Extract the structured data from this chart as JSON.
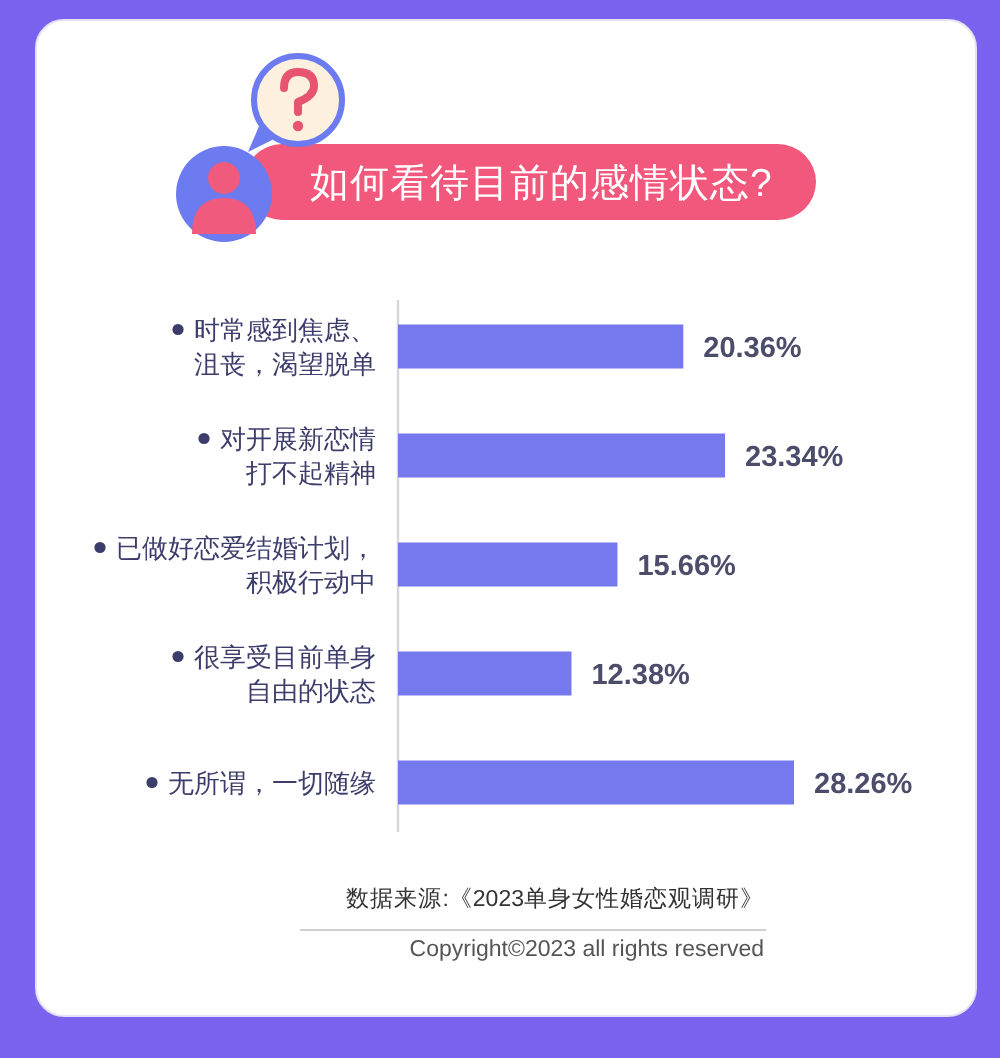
{
  "chart_data": {
    "type": "bar",
    "orientation": "horizontal",
    "title": "如何看待目前的感情状态?",
    "categories": [
      "时常感到焦虑、沮丧，渴望脱单",
      "对开展新恋情打不起精神",
      "已做好恋爱结婚计划，积极行动中",
      "很享受目前单身自由的状态",
      "无所谓，一切随缘"
    ],
    "values": [
      20.36,
      23.34,
      15.66,
      12.38,
      28.26
    ],
    "value_labels": [
      "20.36%",
      "23.34%",
      "15.66%",
      "12.38%",
      "28.26%"
    ],
    "color": "#7679ee",
    "annotations": [
      "数据来源:《2023单身女性婚恋观调研》",
      "Copyright©2023 all rights reserved"
    ]
  }
}
